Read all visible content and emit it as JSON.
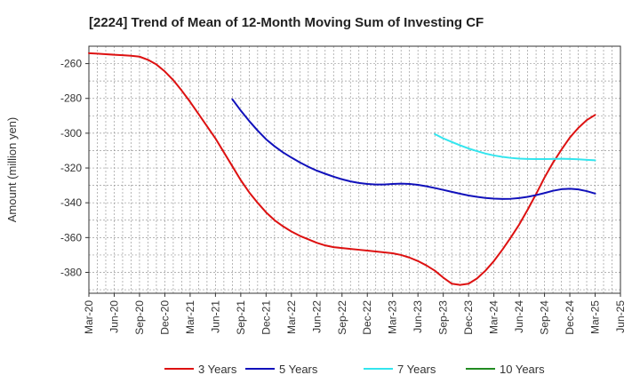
{
  "chart_data": {
    "type": "line",
    "title": "[2224]  Trend of Mean of 12-Month Moving Sum of Investing CF",
    "ylabel": "Amount (million yen)",
    "xlabel": "",
    "ylim": [
      -392,
      -250
    ],
    "yticks": [
      -260,
      -280,
      -300,
      -320,
      -340,
      -360,
      -380
    ],
    "x_tick_labels": [
      "Mar-20",
      "Jun-20",
      "Sep-20",
      "Dec-20",
      "Mar-21",
      "Jun-21",
      "Sep-21",
      "Dec-21",
      "Mar-22",
      "Jun-22",
      "Sep-22",
      "Dec-22",
      "Mar-23",
      "Jun-23",
      "Sep-23",
      "Dec-23",
      "Mar-24",
      "Jun-24",
      "Sep-24",
      "Dec-24",
      "Mar-25",
      "Jun-25"
    ],
    "grid": true,
    "legend_position": "bottom",
    "series": [
      {
        "name": "3 Years",
        "color": "#dd1111",
        "x": [
          "Mar-20",
          "Apr-20",
          "May-20",
          "Jun-20",
          "Jul-20",
          "Aug-20",
          "Sep-20",
          "Oct-20",
          "Nov-20",
          "Dec-20",
          "Jan-21",
          "Feb-21",
          "Mar-21",
          "Apr-21",
          "May-21",
          "Jun-21",
          "Jul-21",
          "Aug-21",
          "Sep-21",
          "Oct-21",
          "Nov-21",
          "Dec-21",
          "Jan-22",
          "Feb-22",
          "Mar-22",
          "Apr-22",
          "May-22",
          "Jun-22",
          "Jul-22",
          "Aug-22",
          "Sep-22",
          "Oct-22",
          "Nov-22",
          "Dec-22",
          "Jan-23",
          "Feb-23",
          "Mar-23",
          "Apr-23",
          "May-23",
          "Jun-23",
          "Jul-23",
          "Aug-23",
          "Sep-23",
          "Oct-23",
          "Nov-23",
          "Dec-23",
          "Jan-24",
          "Feb-24",
          "Mar-24",
          "Apr-24",
          "May-24",
          "Jun-24",
          "Jul-24",
          "Aug-24",
          "Sep-24",
          "Oct-24",
          "Nov-24",
          "Dec-24",
          "Jan-25",
          "Feb-25",
          "Mar-25"
        ],
        "values": [
          -254,
          -254.3,
          -254.6,
          -254.9,
          -255.2,
          -255.5,
          -256,
          -257.8,
          -260.5,
          -264.5,
          -269.5,
          -275.5,
          -282,
          -289,
          -296,
          -303,
          -311,
          -319,
          -327,
          -334,
          -340,
          -345.5,
          -350,
          -353.5,
          -356.5,
          -359,
          -361,
          -363,
          -364.5,
          -365.5,
          -366,
          -366.5,
          -367,
          -367.5,
          -368,
          -368.5,
          -369,
          -370,
          -371.5,
          -373.5,
          -376,
          -379,
          -383,
          -386.5,
          -387.2,
          -386.5,
          -383.5,
          -379,
          -373.5,
          -367,
          -360,
          -352.5,
          -344,
          -335,
          -325.5,
          -317,
          -309.5,
          -302.5,
          -297,
          -292.5,
          -289.5
        ]
      },
      {
        "name": "5 Years",
        "color": "#1111bb",
        "x": [
          "Aug-21",
          "Sep-21",
          "Oct-21",
          "Nov-21",
          "Dec-21",
          "Jan-22",
          "Feb-22",
          "Mar-22",
          "Apr-22",
          "May-22",
          "Jun-22",
          "Jul-22",
          "Aug-22",
          "Sep-22",
          "Oct-22",
          "Nov-22",
          "Dec-22",
          "Jan-23",
          "Feb-23",
          "Mar-23",
          "Apr-23",
          "May-23",
          "Jun-23",
          "Jul-23",
          "Aug-23",
          "Sep-23",
          "Oct-23",
          "Nov-23",
          "Dec-23",
          "Jan-24",
          "Feb-24",
          "Mar-24",
          "Apr-24",
          "May-24",
          "Jun-24",
          "Jul-24",
          "Aug-24",
          "Sep-24",
          "Oct-24",
          "Nov-24",
          "Dec-24",
          "Jan-25",
          "Feb-25",
          "Mar-25"
        ],
        "values": [
          -280.5,
          -287,
          -293,
          -298.5,
          -303.5,
          -307.5,
          -311,
          -314,
          -316.8,
          -319.3,
          -321.5,
          -323.3,
          -325,
          -326.5,
          -327.7,
          -328.6,
          -329.2,
          -329.5,
          -329.5,
          -329.2,
          -329,
          -329.2,
          -329.7,
          -330.5,
          -331.5,
          -332.6,
          -333.7,
          -334.8,
          -335.8,
          -336.6,
          -337.2,
          -337.6,
          -337.8,
          -337.7,
          -337.3,
          -336.6,
          -335.6,
          -334.4,
          -333.1,
          -332.2,
          -331.9,
          -332.3,
          -333.3,
          -334.7
        ]
      },
      {
        "name": "7 Years",
        "color": "#33e5ee",
        "x": [
          "Aug-23",
          "Sep-23",
          "Oct-23",
          "Nov-23",
          "Dec-23",
          "Jan-24",
          "Feb-24",
          "Mar-24",
          "Apr-24",
          "May-24",
          "Jun-24",
          "Jul-24",
          "Aug-24",
          "Sep-24",
          "Oct-24",
          "Nov-24",
          "Dec-24",
          "Jan-25",
          "Feb-25",
          "Mar-25"
        ],
        "values": [
          -300.5,
          -303,
          -305,
          -307,
          -308.8,
          -310.3,
          -311.7,
          -312.8,
          -313.6,
          -314.2,
          -314.6,
          -314.8,
          -314.9,
          -314.9,
          -314.8,
          -314.7,
          -314.8,
          -315,
          -315.3,
          -315.6
        ]
      },
      {
        "name": "10 Years",
        "color": "#228b22",
        "x": [],
        "values": []
      }
    ]
  }
}
